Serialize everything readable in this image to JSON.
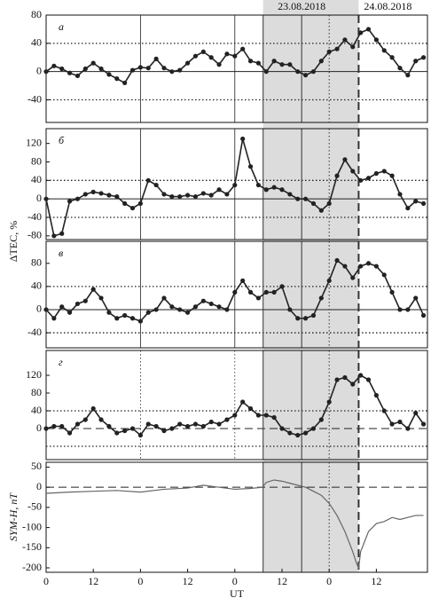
{
  "figure": {
    "ylabel": "ΔTEC, %",
    "span": [
      55.2,
      79.5
    ],
    "events": [
      {
        "x": 55.2,
        "style": "solid"
      },
      {
        "x": 65,
        "style": "solid",
        "label": "23.08.2018"
      },
      {
        "x": 72,
        "style": "dotted"
      },
      {
        "x": 79.5,
        "style": "dashed",
        "label": "24.08.2018"
      }
    ]
  },
  "chart_data": [
    {
      "type": "line",
      "label": "а",
      "xlim": [
        0,
        97
      ],
      "ylim": [
        -72,
        80
      ],
      "yticks": [
        -40,
        0,
        40,
        80
      ],
      "ref_lines": [
        -40,
        40
      ],
      "zero_line": "solid",
      "vlines": [
        24,
        48
      ],
      "vline_style": "solid",
      "x": [
        0,
        2,
        4,
        6,
        8,
        10,
        12,
        14,
        16,
        18,
        20,
        22,
        24,
        26,
        28,
        30,
        32,
        34,
        36,
        38,
        40,
        42,
        44,
        46,
        48,
        50,
        52,
        54,
        56,
        58,
        60,
        62,
        64,
        66,
        68,
        70,
        72,
        74,
        76,
        78,
        80,
        82,
        84,
        86,
        88,
        90,
        92,
        94,
        96
      ],
      "series": [
        {
          "color": "#222222",
          "values": [
            0,
            8,
            4,
            -2,
            -6,
            4,
            12,
            4,
            -4,
            -10,
            -16,
            2,
            6,
            5,
            18,
            5,
            0,
            2,
            12,
            22,
            28,
            20,
            10,
            25,
            22,
            32,
            15,
            12,
            0,
            15,
            10,
            10,
            0,
            -5,
            0,
            15,
            28,
            32,
            45,
            35,
            55,
            60,
            45,
            30,
            20,
            5,
            -5,
            15,
            20
          ]
        }
      ]
    },
    {
      "type": "line",
      "label": "б",
      "xlim": [
        0,
        97
      ],
      "ylim": [
        -88,
        152
      ],
      "yticks": [
        -80,
        -40,
        0,
        40,
        80,
        120
      ],
      "ref_lines": [
        -40,
        40
      ],
      "zero_line": "solid",
      "vlines": [
        24,
        48
      ],
      "vline_style": "solid",
      "x": [
        0,
        2,
        4,
        6,
        8,
        10,
        12,
        14,
        16,
        18,
        20,
        22,
        24,
        26,
        28,
        30,
        32,
        34,
        36,
        38,
        40,
        42,
        44,
        46,
        48,
        50,
        52,
        54,
        56,
        58,
        60,
        62,
        64,
        66,
        68,
        70,
        72,
        74,
        76,
        78,
        80,
        82,
        84,
        86,
        88,
        90,
        92,
        94,
        96
      ],
      "series": [
        {
          "color": "#222222",
          "values": [
            0,
            -80,
            -75,
            -5,
            0,
            10,
            15,
            12,
            8,
            5,
            -10,
            -20,
            -10,
            40,
            30,
            10,
            5,
            5,
            8,
            5,
            12,
            8,
            20,
            10,
            30,
            130,
            70,
            30,
            20,
            25,
            20,
            10,
            0,
            0,
            -10,
            -25,
            -10,
            50,
            85,
            60,
            40,
            45,
            55,
            60,
            50,
            10,
            -20,
            -5,
            -10
          ]
        }
      ]
    },
    {
      "type": "line",
      "label": "в",
      "xlim": [
        0,
        97
      ],
      "ylim": [
        -66,
        118
      ],
      "yticks": [
        -40,
        0,
        40,
        80
      ],
      "ref_lines": [
        -40,
        40
      ],
      "zero_line": "solid",
      "vlines": [
        24,
        48
      ],
      "vline_style": "solid",
      "x": [
        0,
        2,
        4,
        6,
        8,
        10,
        12,
        14,
        16,
        18,
        20,
        22,
        24,
        26,
        28,
        30,
        32,
        34,
        36,
        38,
        40,
        42,
        44,
        46,
        48,
        50,
        52,
        54,
        56,
        58,
        60,
        62,
        64,
        66,
        68,
        70,
        72,
        74,
        76,
        78,
        80,
        82,
        84,
        86,
        88,
        90,
        92,
        94,
        96
      ],
      "series": [
        {
          "color": "#222222",
          "values": [
            0,
            -15,
            5,
            -5,
            10,
            15,
            35,
            20,
            -5,
            -15,
            -10,
            -15,
            -20,
            -5,
            0,
            20,
            5,
            0,
            -5,
            5,
            15,
            10,
            5,
            0,
            30,
            50,
            30,
            20,
            30,
            30,
            40,
            0,
            -15,
            -15,
            -10,
            20,
            50,
            85,
            75,
            55,
            75,
            80,
            75,
            60,
            30,
            0,
            0,
            20,
            -10
          ]
        }
      ]
    },
    {
      "type": "line",
      "label": "г",
      "xlim": [
        0,
        97
      ],
      "ylim": [
        -70,
        176
      ],
      "yticks": [
        0,
        40,
        80,
        120
      ],
      "ref_lines": [
        -40,
        40
      ],
      "zero_line": "dashed",
      "vlines": [
        24,
        48
      ],
      "vline_style": "dotted",
      "x": [
        0,
        2,
        4,
        6,
        8,
        10,
        12,
        14,
        16,
        18,
        20,
        22,
        24,
        26,
        28,
        30,
        32,
        34,
        36,
        38,
        40,
        42,
        44,
        46,
        48,
        50,
        52,
        54,
        56,
        58,
        60,
        62,
        64,
        66,
        68,
        70,
        72,
        74,
        76,
        78,
        80,
        82,
        84,
        86,
        88,
        90,
        92,
        94,
        96
      ],
      "series": [
        {
          "color": "#222222",
          "values": [
            0,
            5,
            5,
            -10,
            10,
            20,
            45,
            20,
            5,
            -10,
            -5,
            0,
            -15,
            10,
            5,
            -5,
            0,
            10,
            5,
            10,
            5,
            15,
            10,
            20,
            30,
            60,
            45,
            30,
            30,
            25,
            0,
            -10,
            -15,
            -10,
            0,
            20,
            60,
            110,
            115,
            100,
            120,
            110,
            75,
            40,
            10,
            15,
            0,
            35,
            10
          ]
        }
      ]
    },
    {
      "type": "line",
      "ylabel": "SYM-H, nT",
      "xlabel": "UT",
      "xlim": [
        0,
        97
      ],
      "ylim": [
        -211,
        62
      ],
      "yticks": [
        -200,
        -150,
        -100,
        -50,
        0,
        50
      ],
      "ref_lines": [],
      "zero_line": "dashed",
      "vlines": [],
      "vline_style": "solid",
      "xticks": [
        0,
        12,
        {
          "value": 24,
          "label": "0"
        },
        {
          "value": 36,
          "label": "12"
        },
        {
          "value": 48,
          "label": "0"
        },
        {
          "value": 60,
          "label": "12"
        },
        {
          "value": 72,
          "label": "0"
        },
        {
          "value": 84,
          "label": "12"
        }
      ],
      "x": [
        0,
        6,
        12,
        18,
        24,
        30,
        36,
        40,
        44,
        48,
        52,
        55,
        56,
        58,
        60,
        62,
        64,
        66,
        68,
        70,
        72,
        74,
        76,
        78,
        79,
        79.5,
        80,
        82,
        84,
        86,
        88,
        90,
        92,
        94,
        96
      ],
      "series": [
        {
          "color": "#666666",
          "markers": false,
          "values": [
            -15,
            -12,
            -10,
            -8,
            -12,
            -5,
            -2,
            5,
            0,
            -5,
            -3,
            0,
            12,
            18,
            15,
            10,
            5,
            0,
            -10,
            -20,
            -40,
            -70,
            -110,
            -160,
            -190,
            -200,
            -160,
            -110,
            -90,
            -85,
            -75,
            -80,
            -75,
            -70,
            -70
          ]
        }
      ]
    }
  ]
}
